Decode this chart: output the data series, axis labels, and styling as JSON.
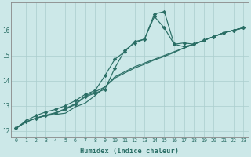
{
  "xlabel": "Humidex (Indice chaleur)",
  "ylabel": "",
  "bg_color": "#cce8e8",
  "line_color": "#2a6e65",
  "grid_color": "#aacece",
  "xlim": [
    -0.5,
    23.5
  ],
  "ylim": [
    11.75,
    17.1
  ],
  "xticks": [
    0,
    1,
    2,
    3,
    4,
    5,
    6,
    7,
    8,
    9,
    10,
    11,
    12,
    13,
    14,
    15,
    16,
    17,
    18,
    19,
    20,
    21,
    22,
    23
  ],
  "xtick_labels": [
    "0",
    "1",
    "2",
    "3",
    "4",
    "5",
    "6",
    "7",
    "8",
    "9",
    "10",
    "11",
    "12",
    "13",
    "14",
    "15",
    "16",
    "17",
    "18",
    "19",
    "20",
    "21",
    "22",
    "23"
  ],
  "yticks": [
    12,
    13,
    14,
    15,
    16
  ],
  "series": [
    [
      12.1,
      12.35,
      12.5,
      12.6,
      12.65,
      12.7,
      12.95,
      13.1,
      13.4,
      13.75,
      14.15,
      14.35,
      14.55,
      14.7,
      14.85,
      15.0,
      15.15,
      15.3,
      15.45,
      15.6,
      15.75,
      15.9,
      16.0,
      16.1
    ],
    [
      12.1,
      12.4,
      12.6,
      12.75,
      12.85,
      13.0,
      13.2,
      13.45,
      13.6,
      14.2,
      14.85,
      15.15,
      15.55,
      15.65,
      16.65,
      16.75,
      15.45,
      15.35,
      15.45,
      15.6,
      15.75,
      15.9,
      16.0,
      16.1
    ],
    [
      12.1,
      12.35,
      12.5,
      12.62,
      12.72,
      12.88,
      13.08,
      13.38,
      13.55,
      13.75,
      14.1,
      14.3,
      14.5,
      14.65,
      14.82,
      14.96,
      15.12,
      15.3,
      15.45,
      15.6,
      15.75,
      15.9,
      16.0,
      16.1
    ],
    [
      12.1,
      12.35,
      12.5,
      12.6,
      12.7,
      12.85,
      13.05,
      13.35,
      13.5,
      13.65,
      14.5,
      15.2,
      15.5,
      15.65,
      16.55,
      16.1,
      15.45,
      15.5,
      15.45,
      15.6,
      15.75,
      15.9,
      16.0,
      16.1
    ]
  ],
  "marker_series": [
    1,
    3
  ],
  "marker": "D",
  "markersize": 2.2,
  "linewidth": 0.85
}
